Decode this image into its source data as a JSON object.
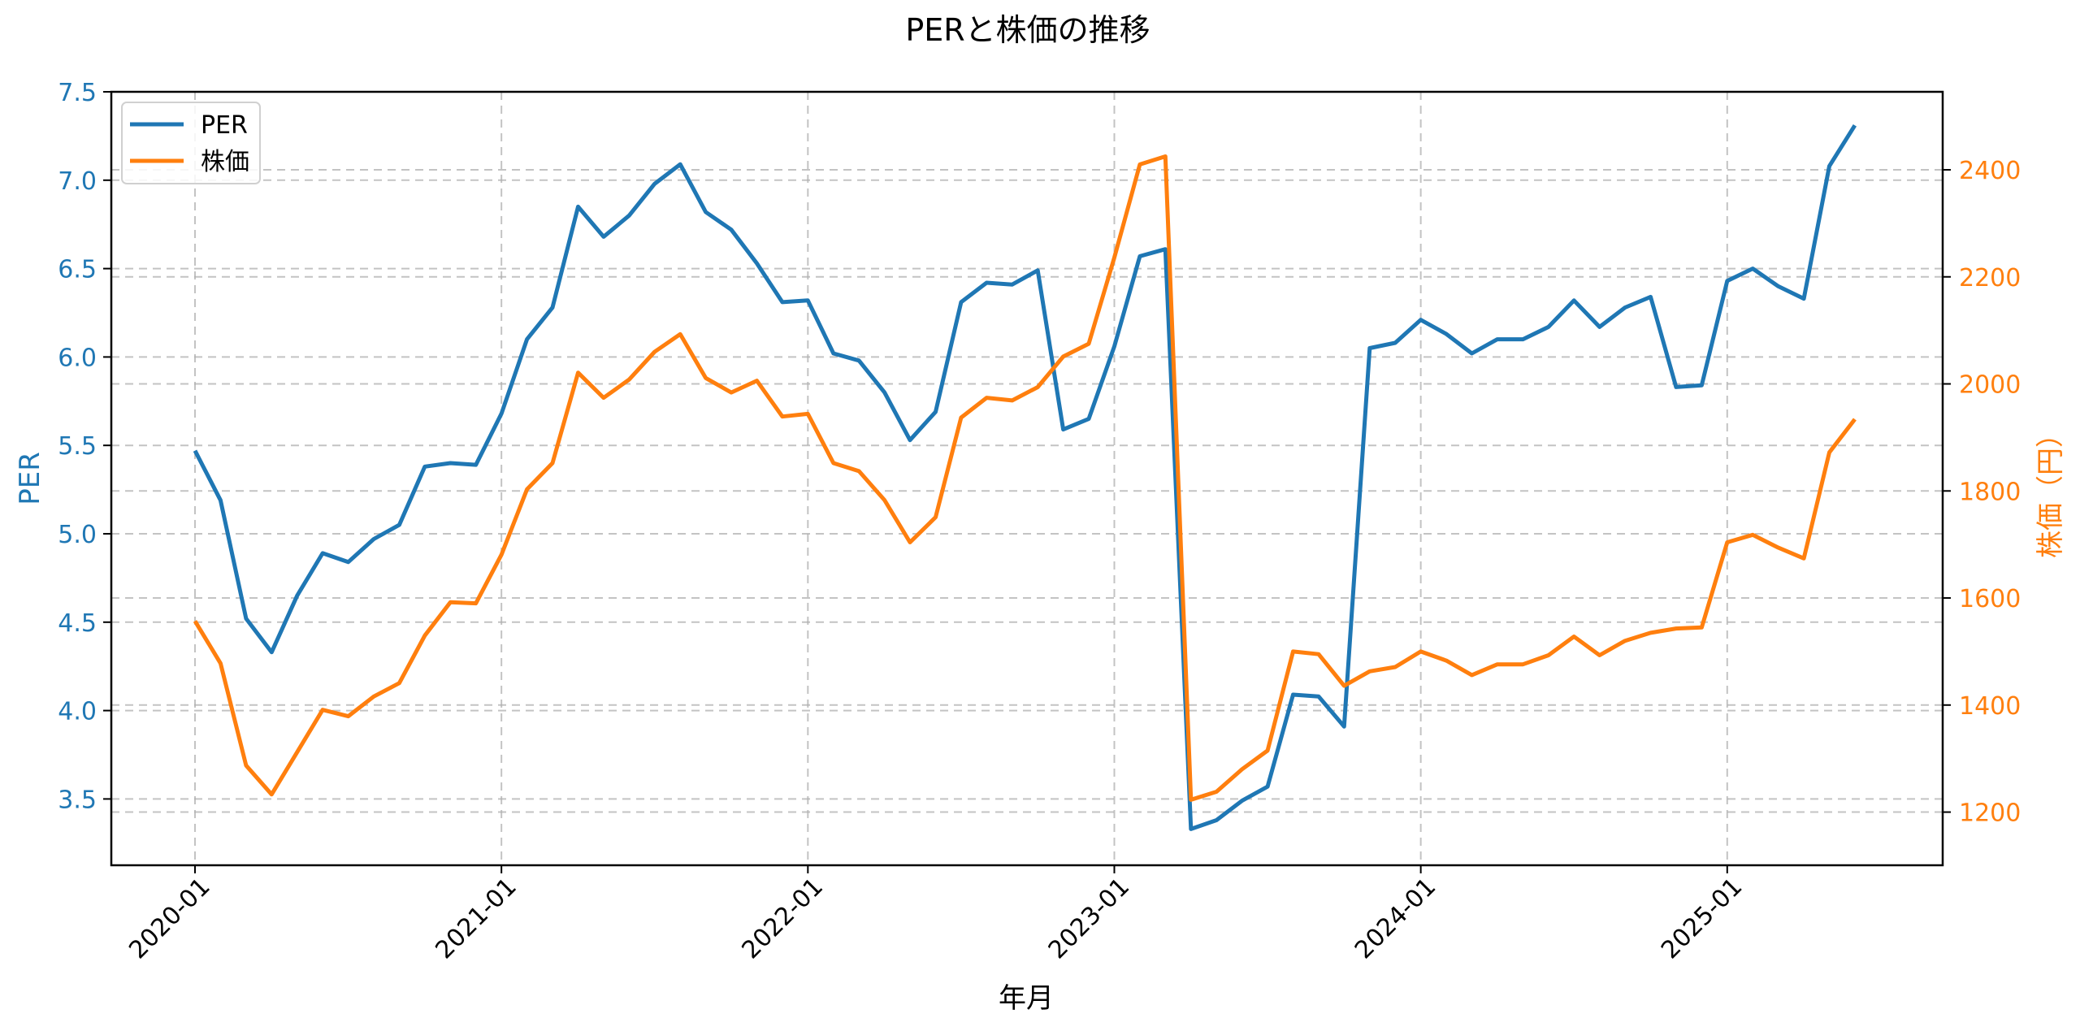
{
  "chart_data": {
    "type": "line",
    "title": "PERと株価の推移",
    "xlabel": "年月",
    "ylabel": "PER",
    "ylabel_right": "株価（円）",
    "ylim": [
      3.1,
      7.5
    ],
    "ylim_right": [
      1100,
      2540
    ],
    "yticks": [
      "3.5",
      "4.0",
      "4.5",
      "5.0",
      "5.5",
      "6.0",
      "6.5",
      "7.0",
      "7.5"
    ],
    "yticks_right": [
      "1200",
      "1400",
      "1600",
      "1800",
      "2000",
      "2200",
      "2400"
    ],
    "xticks": [
      "2020-01",
      "2021-01",
      "2022-01",
      "2023-01",
      "2024-01",
      "2025-01"
    ],
    "grid": true,
    "legend_position": "upper left",
    "x": [
      "2020-01",
      "2020-02",
      "2020-03",
      "2020-04",
      "2020-05",
      "2020-06",
      "2020-07",
      "2020-08",
      "2020-09",
      "2020-10",
      "2020-11",
      "2020-12",
      "2021-01",
      "2021-02",
      "2021-03",
      "2021-04",
      "2021-05",
      "2021-06",
      "2021-07",
      "2021-08",
      "2021-09",
      "2021-10",
      "2021-11",
      "2021-12",
      "2022-01",
      "2022-02",
      "2022-03",
      "2022-04",
      "2022-05",
      "2022-06",
      "2022-07",
      "2022-08",
      "2022-09",
      "2022-10",
      "2022-11",
      "2022-12",
      "2023-01",
      "2023-02",
      "2023-03",
      "2023-04",
      "2023-05",
      "2023-06",
      "2023-07",
      "2023-08",
      "2023-09",
      "2023-10",
      "2023-11",
      "2023-12",
      "2024-01",
      "2024-02",
      "2024-03",
      "2024-04",
      "2024-05",
      "2024-06",
      "2024-07",
      "2024-08",
      "2024-09",
      "2024-10",
      "2024-11",
      "2024-12",
      "2025-01",
      "2025-02",
      "2025-03",
      "2025-04",
      "2025-05",
      "2025-06"
    ],
    "series": [
      {
        "name": "PER",
        "axis": "left",
        "color": "#1f77b4",
        "values": [
          5.47,
          5.19,
          4.52,
          4.33,
          4.65,
          4.89,
          4.84,
          4.97,
          5.05,
          5.38,
          5.4,
          5.39,
          5.68,
          6.1,
          6.28,
          6.85,
          6.68,
          6.8,
          6.98,
          7.09,
          6.82,
          6.72,
          6.53,
          6.31,
          6.32,
          6.02,
          5.98,
          5.8,
          5.53,
          5.69,
          6.31,
          6.42,
          6.41,
          6.49,
          5.59,
          5.65,
          6.06,
          6.57,
          6.61,
          3.33,
          3.38,
          3.49,
          3.57,
          4.09,
          4.08,
          3.91,
          6.05,
          6.08,
          6.21,
          6.13,
          6.02,
          6.1,
          6.1,
          6.17,
          6.32,
          6.17,
          6.28,
          6.34,
          5.83,
          5.84,
          6.43,
          6.5,
          6.4,
          6.33,
          7.08,
          7.31
        ]
      },
      {
        "name": "株価",
        "axis": "right",
        "color": "#ff7f0e",
        "values": [
          1557,
          1478,
          1287,
          1233,
          1312,
          1391,
          1379,
          1416,
          1441,
          1530,
          1592,
          1590,
          1681,
          1803,
          1852,
          2021,
          1974,
          2008,
          2060,
          2093,
          2011,
          1984,
          2006,
          1939,
          1944,
          1852,
          1837,
          1783,
          1704,
          1751,
          1937,
          1974,
          1969,
          1994,
          2051,
          2075,
          2236,
          2410,
          2425,
          1223,
          1238,
          1280,
          1315,
          1500,
          1495,
          1436,
          1463,
          1471,
          1500,
          1483,
          1456,
          1476,
          1476,
          1493,
          1528,
          1493,
          1520,
          1535,
          1543,
          1545,
          1704,
          1718,
          1694,
          1674,
          1872,
          1934
        ]
      }
    ]
  },
  "legend": {
    "items": [
      {
        "label": "PER",
        "color": "#1f77b4"
      },
      {
        "label": "株価",
        "color": "#ff7f0e"
      }
    ]
  }
}
